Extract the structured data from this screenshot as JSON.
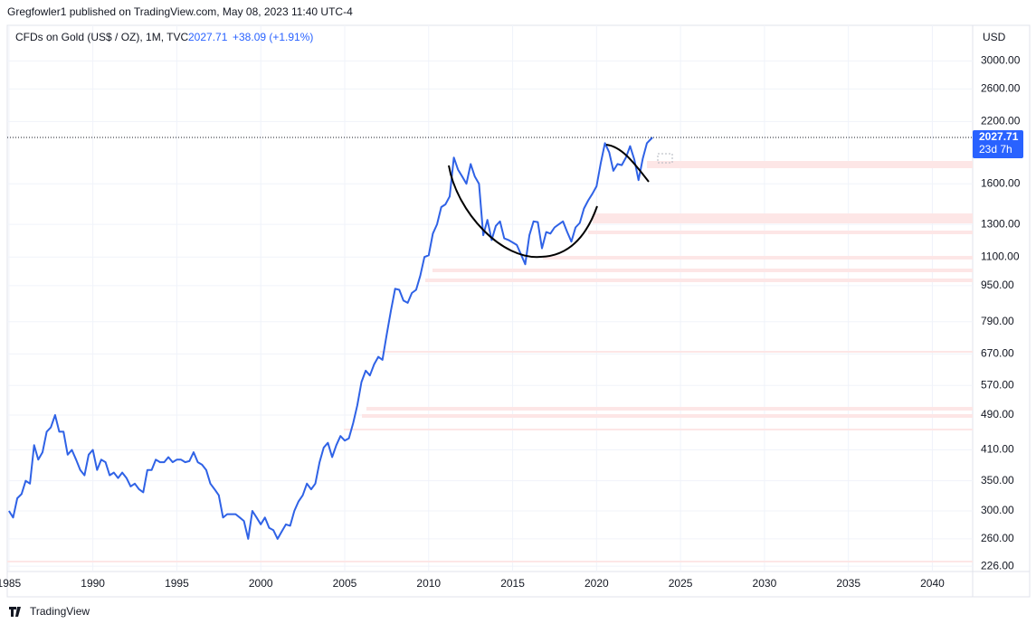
{
  "header": {
    "author_line": "Gregfowler1 published on TradingView.com, May 08, 2023 11:40 UTC-4",
    "brand": "TradingView"
  },
  "chart_data": {
    "type": "line",
    "title": "CFDs on Gold (US$ / OZ), 1M, TVC",
    "last_price": 2027.71,
    "change": "+38.09 (+1.91%)",
    "countdown": "23d 7h",
    "y_unit": "USD",
    "log_scale": true,
    "grid": true,
    "xlim": [
      1984.9,
      2042.4
    ],
    "ylim": [
      220,
      3600
    ],
    "xticks": [
      1985,
      1990,
      1995,
      2000,
      2005,
      2010,
      2015,
      2020,
      2025,
      2030,
      2035,
      2040
    ],
    "yticks": [
      {
        "value": 226,
        "label": "226.00"
      },
      {
        "value": 260,
        "label": "260.00"
      },
      {
        "value": 300,
        "label": "300.00"
      },
      {
        "value": 350,
        "label": "350.00"
      },
      {
        "value": 410,
        "label": "410.00"
      },
      {
        "value": 490,
        "label": "490.00"
      },
      {
        "value": 570,
        "label": "570.00"
      },
      {
        "value": 670,
        "label": "670.00"
      },
      {
        "value": 790,
        "label": "790.00"
      },
      {
        "value": 950,
        "label": "950.00"
      },
      {
        "value": 1100,
        "label": "1100.00"
      },
      {
        "value": 1300,
        "label": "1300.00"
      },
      {
        "value": 1600,
        "label": "1600.00"
      },
      {
        "value": 2200,
        "label": "2200.00"
      },
      {
        "value": 2600,
        "label": "2600.00"
      },
      {
        "value": 3000,
        "label": "3000.00"
      }
    ],
    "series": [
      {
        "name": "CFDs on Gold",
        "color": "#2f62e6",
        "x": [
          1985,
          1985.25,
          1985.5,
          1985.75,
          1986,
          1986.25,
          1986.5,
          1986.75,
          1987,
          1987.25,
          1987.5,
          1987.75,
          1988,
          1988.25,
          1988.5,
          1988.75,
          1989,
          1989.25,
          1989.5,
          1989.75,
          1990,
          1990.25,
          1990.5,
          1990.75,
          1991,
          1991.25,
          1991.5,
          1991.75,
          1992,
          1992.25,
          1992.5,
          1992.75,
          1993,
          1993.25,
          1993.5,
          1993.75,
          1994,
          1994.25,
          1994.5,
          1994.75,
          1995,
          1995.25,
          1995.5,
          1995.75,
          1996,
          1996.25,
          1996.5,
          1996.75,
          1997,
          1997.25,
          1997.5,
          1997.75,
          1998,
          1998.25,
          1998.5,
          1998.75,
          1999,
          1999.25,
          1999.5,
          1999.75,
          2000,
          2000.25,
          2000.5,
          2000.75,
          2001,
          2001.25,
          2001.5,
          2001.75,
          2002,
          2002.25,
          2002.5,
          2002.75,
          2003,
          2003.25,
          2003.5,
          2003.75,
          2004,
          2004.25,
          2004.5,
          2004.75,
          2005,
          2005.25,
          2005.5,
          2005.75,
          2006,
          2006.25,
          2006.5,
          2006.75,
          2007,
          2007.25,
          2007.5,
          2007.75,
          2008,
          2008.25,
          2008.5,
          2008.75,
          2009,
          2009.25,
          2009.5,
          2009.75,
          2010,
          2010.25,
          2010.5,
          2010.75,
          2011,
          2011.25,
          2011.5,
          2011.75,
          2012,
          2012.25,
          2012.5,
          2012.75,
          2013,
          2013.25,
          2013.5,
          2013.75,
          2014,
          2014.25,
          2014.5,
          2014.75,
          2015,
          2015.25,
          2015.5,
          2015.75,
          2016,
          2016.25,
          2016.5,
          2016.75,
          2017,
          2017.25,
          2017.5,
          2017.75,
          2018,
          2018.25,
          2018.5,
          2018.75,
          2019,
          2019.25,
          2019.5,
          2019.75,
          2020,
          2020.25,
          2020.5,
          2020.75,
          2021,
          2021.25,
          2021.5,
          2021.75,
          2022,
          2022.25,
          2022.5,
          2022.75,
          2023,
          2023.33
        ],
        "values": [
          300,
          290,
          320,
          327,
          350,
          345,
          420,
          390,
          405,
          450,
          460,
          490,
          450,
          450,
          400,
          410,
          390,
          370,
          360,
          400,
          410,
          370,
          390,
          385,
          360,
          365,
          355,
          365,
          355,
          340,
          345,
          335,
          330,
          370,
          370,
          390,
          385,
          385,
          395,
          385,
          390,
          390,
          385,
          387,
          405,
          385,
          380,
          370,
          345,
          335,
          325,
          290,
          295,
          295,
          295,
          290,
          285,
          260,
          300,
          290,
          280,
          290,
          275,
          272,
          260,
          270,
          280,
          278,
          300,
          315,
          325,
          345,
          335,
          345,
          385,
          415,
          425,
          395,
          420,
          440,
          430,
          435,
          470,
          515,
          580,
          615,
          600,
          635,
          660,
          650,
          740,
          835,
          935,
          930,
          880,
          870,
          915,
          930,
          1000,
          1100,
          1110,
          1240,
          1300,
          1420,
          1440,
          1500,
          1830,
          1720,
          1660,
          1600,
          1770,
          1660,
          1600,
          1230,
          1330,
          1200,
          1290,
          1320,
          1210,
          1200,
          1185,
          1170,
          1115,
          1060,
          1230,
          1320,
          1315,
          1150,
          1250,
          1240,
          1280,
          1300,
          1320,
          1250,
          1190,
          1280,
          1310,
          1410,
          1470,
          1520,
          1580,
          1780,
          1970,
          1880,
          1710,
          1770,
          1760,
          1830,
          1940,
          1810,
          1630,
          1820,
          1970,
          2027.71
        ]
      }
    ]
  }
}
